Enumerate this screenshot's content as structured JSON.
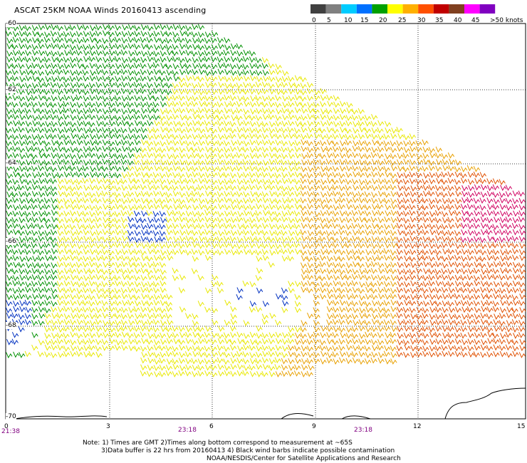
{
  "title": "ASCAT 25KM NOAA Winds 20160413 ascending",
  "legend": {
    "labels": [
      "0",
      "5",
      "10",
      "15",
      "20",
      "25",
      "30",
      "35",
      "40",
      "45",
      ">50 knots"
    ],
    "colors": [
      "#404040",
      "#808080",
      "#00ccff",
      "#0070ff",
      "#00a000",
      "#ffff00",
      "#ffb000",
      "#ff5000",
      "#c00000",
      "#804020",
      "#ff00ff",
      "#8000c0"
    ]
  },
  "lat_labels": [
    "-60",
    "-62",
    "-64",
    "-66",
    "-68",
    "-70"
  ],
  "x_labels": [
    "0",
    "3",
    "6",
    "9",
    "12",
    "15"
  ],
  "time_labels": [
    "21:38",
    "23:18",
    "23:18"
  ],
  "notes": {
    "line1": "Note: 1) Times are GMT  2)Times along bottom correspond to measurement at ~65S",
    "line2": "3)Data buffer is 22 hrs from 20160413  4) Black wind barbs indicate possible contamination",
    "line3": "NOAA/NESDIS/Center for Satellite Applications and Research"
  },
  "wind_field": {
    "regions": [
      {
        "name": "green",
        "color": "#009000"
      },
      {
        "name": "yellow",
        "color": "#e8e800"
      },
      {
        "name": "orange",
        "color": "#e8a000"
      },
      {
        "name": "red-orange",
        "color": "#e05000"
      },
      {
        "name": "magenta",
        "color": "#d00060"
      },
      {
        "name": "blue",
        "color": "#0030c0"
      }
    ]
  }
}
